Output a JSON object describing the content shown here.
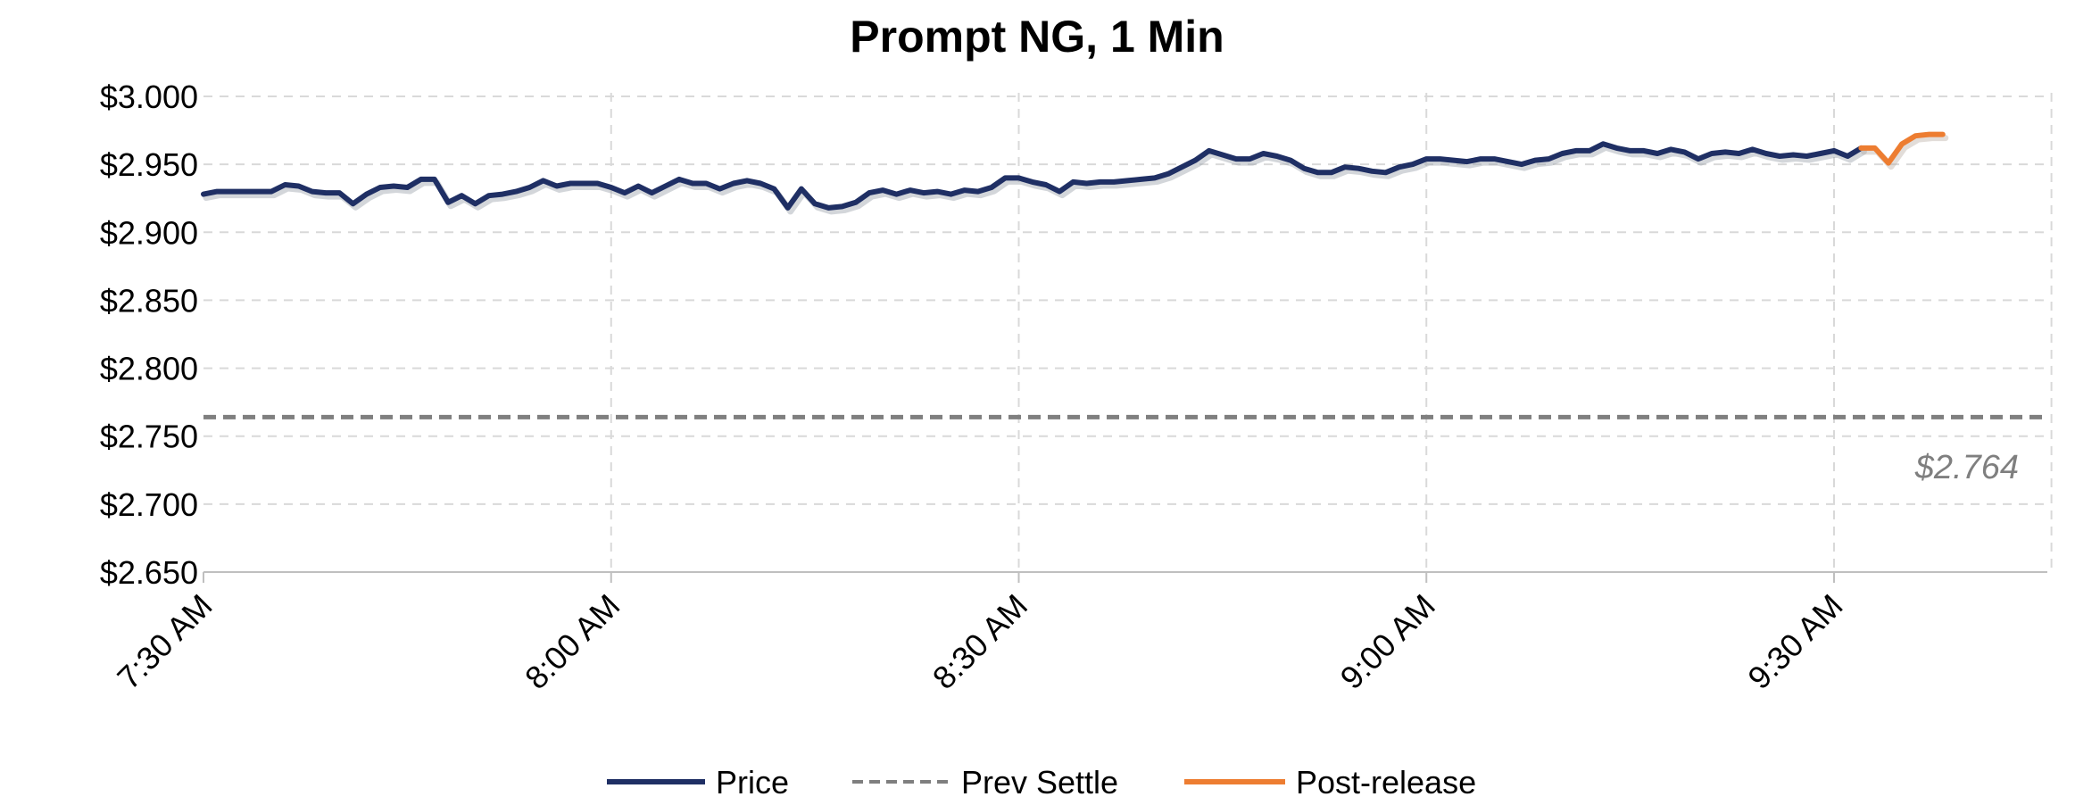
{
  "chart_data": {
    "type": "line",
    "title": "Prompt NG, 1 Min",
    "xlabel": "",
    "ylabel": "",
    "x_range_minutes_from_730": [
      0,
      136
    ],
    "x_ticks": [
      "7:30 AM",
      "8:00 AM",
      "8:30 AM",
      "9:00 AM",
      "9:30 AM"
    ],
    "ylim": [
      2.65,
      3.0
    ],
    "y_ticks": [
      "$2.650",
      "$2.700",
      "$2.750",
      "$2.800",
      "$2.850",
      "$2.900",
      "$2.950",
      "$3.000"
    ],
    "grid": true,
    "legend_position": "bottom",
    "series": [
      {
        "name": "Price",
        "color": "#1f2f64",
        "style": "solid",
        "x_start": "7:30 AM",
        "step": "1 min",
        "values": [
          2.928,
          2.93,
          2.93,
          2.93,
          2.93,
          2.93,
          2.935,
          2.934,
          2.93,
          2.929,
          2.929,
          2.921,
          2.928,
          2.933,
          2.934,
          2.933,
          2.939,
          2.939,
          2.922,
          2.927,
          2.921,
          2.927,
          2.928,
          2.93,
          2.933,
          2.938,
          2.934,
          2.936,
          2.936,
          2.936,
          2.933,
          2.929,
          2.934,
          2.929,
          2.934,
          2.939,
          2.936,
          2.936,
          2.932,
          2.936,
          2.938,
          2.936,
          2.932,
          2.918,
          2.932,
          2.921,
          2.918,
          2.919,
          2.922,
          2.929,
          2.931,
          2.928,
          2.931,
          2.929,
          2.93,
          2.928,
          2.931,
          2.93,
          2.933,
          2.94,
          2.94,
          2.937,
          2.935,
          2.93,
          2.937,
          2.936,
          2.937,
          2.937,
          2.938,
          2.939,
          2.94,
          2.943,
          2.948,
          2.953,
          2.96,
          2.957,
          2.954,
          2.954,
          2.958,
          2.956,
          2.953,
          2.947,
          2.944,
          2.944,
          2.948,
          2.947,
          2.945,
          2.944,
          2.948,
          2.95,
          2.954,
          2.954,
          2.953,
          2.952,
          2.954,
          2.954,
          2.952,
          2.95,
          2.953,
          2.954,
          2.958,
          2.96,
          2.96,
          2.965,
          2.962,
          2.96,
          2.96,
          2.958,
          2.961,
          2.959,
          2.954,
          2.958,
          2.959,
          2.958,
          2.961,
          2.958,
          2.956,
          2.957,
          2.956,
          2.958,
          2.96,
          2.956,
          2.962
        ]
      },
      {
        "name": "Prev Settle",
        "color": "#7f7f7f",
        "style": "dashed",
        "value": 2.764,
        "label": "$2.764"
      },
      {
        "name": "Post-release",
        "color": "#ed7d31",
        "style": "solid",
        "x_start": "9:31 AM",
        "step": "1 min",
        "values": [
          2.962,
          2.951,
          2.965,
          2.971,
          2.972,
          2.972
        ]
      }
    ]
  }
}
